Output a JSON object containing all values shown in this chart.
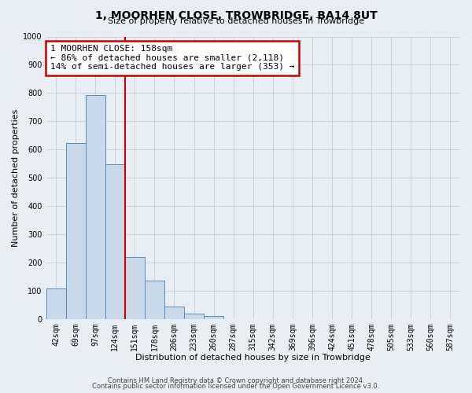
{
  "title": "1, MOORHEN CLOSE, TROWBRIDGE, BA14 8UT",
  "subtitle": "Size of property relative to detached houses in Trowbridge",
  "xlabel": "Distribution of detached houses by size in Trowbridge",
  "ylabel": "Number of detached properties",
  "footer_line1": "Contains HM Land Registry data © Crown copyright and database right 2024.",
  "footer_line2": "Contains public sector information licensed under the Open Government Licence v3.0.",
  "bar_labels": [
    "42sqm",
    "69sqm",
    "97sqm",
    "124sqm",
    "151sqm",
    "178sqm",
    "206sqm",
    "233sqm",
    "260sqm",
    "287sqm",
    "315sqm",
    "342sqm",
    "369sqm",
    "396sqm",
    "424sqm",
    "451sqm",
    "478sqm",
    "505sqm",
    "533sqm",
    "560sqm",
    "587sqm"
  ],
  "bar_values": [
    107,
    622,
    793,
    547,
    220,
    137,
    44,
    18,
    10,
    0,
    0,
    0,
    0,
    0,
    0,
    0,
    0,
    0,
    0,
    0,
    0
  ],
  "bar_color": "#c9d9ea",
  "bar_edge_color": "#5b8db8",
  "property_line_color": "#cc0000",
  "property_line_index": 3.5,
  "annotation_line0": "1 MOORHEN CLOSE: 158sqm",
  "annotation_line1": "← 86% of detached houses are smaller (2,118)",
  "annotation_line2": "14% of semi-detached houses are larger (353) →",
  "annotation_box_edgecolor": "#cc0000",
  "ylim": [
    0,
    1000
  ],
  "yticks": [
    0,
    100,
    200,
    300,
    400,
    500,
    600,
    700,
    800,
    900,
    1000
  ],
  "background_color": "#e8eef4",
  "plot_bg_color": "#e8eef4",
  "grid_color": "#c0c8d0",
  "title_fontsize": 10,
  "subtitle_fontsize": 8,
  "xlabel_fontsize": 8,
  "ylabel_fontsize": 8,
  "tick_fontsize": 7,
  "footer_fontsize": 6
}
